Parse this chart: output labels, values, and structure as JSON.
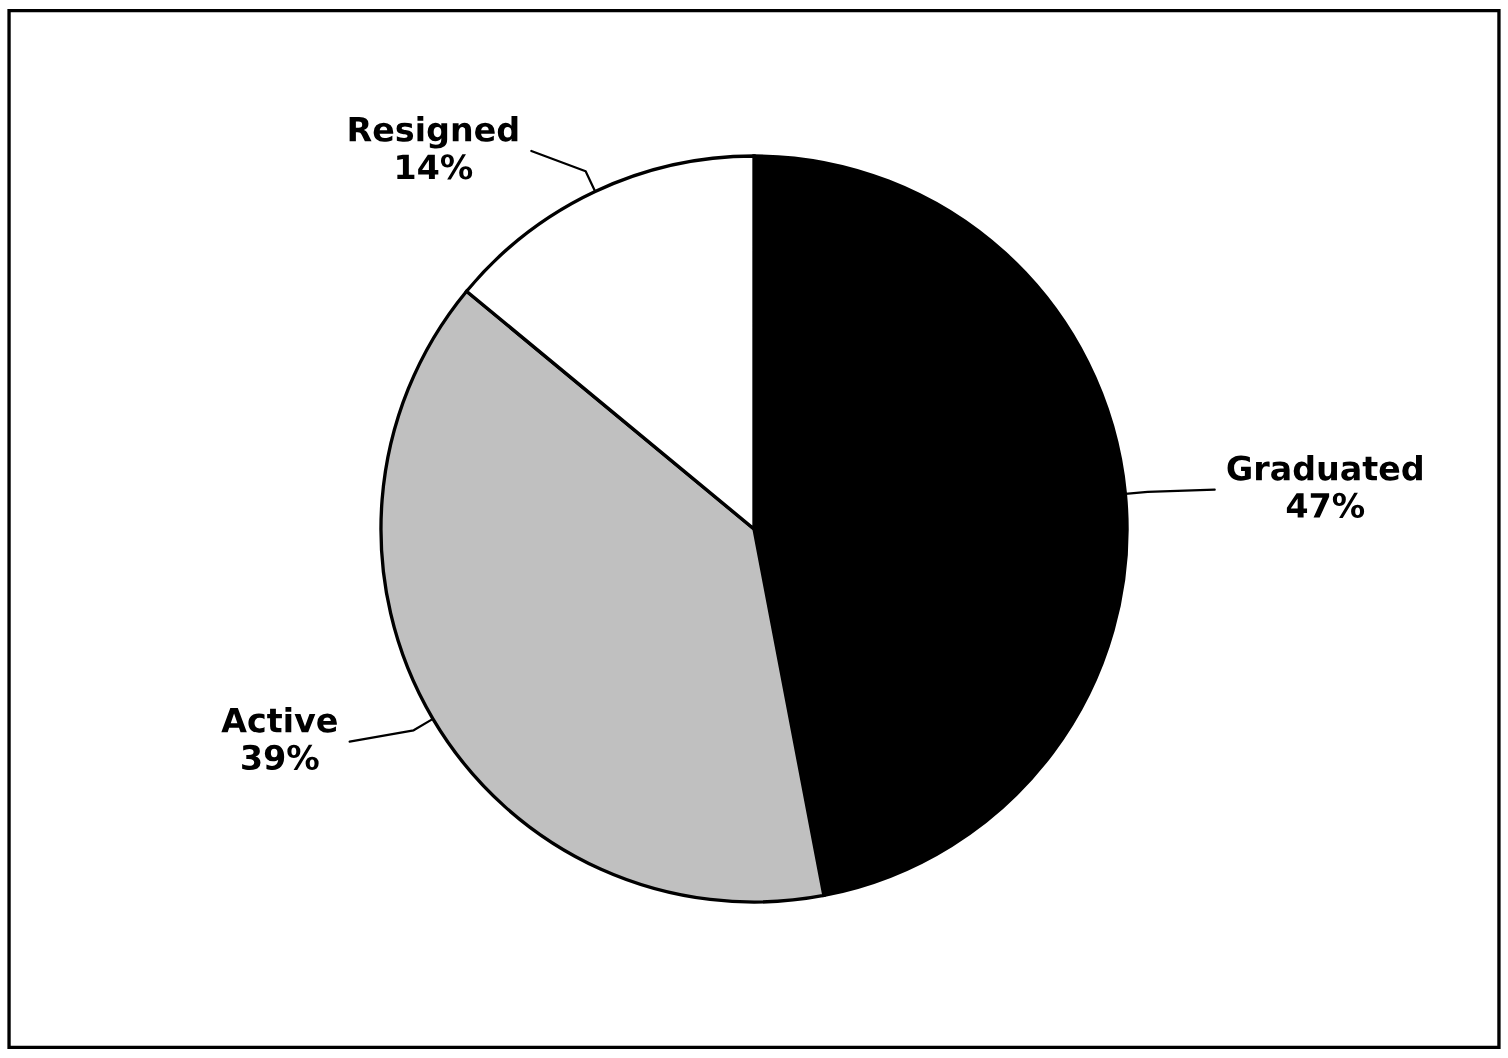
{
  "chart_data": {
    "type": "pie",
    "categories": [
      "Graduated",
      "Active",
      "Resigned"
    ],
    "values": [
      47,
      39,
      14
    ],
    "colors": [
      "#000000",
      "#c0c0c0",
      "#ffffff"
    ],
    "value_labels": [
      "47%",
      "39%",
      "14%"
    ],
    "legend": false
  }
}
